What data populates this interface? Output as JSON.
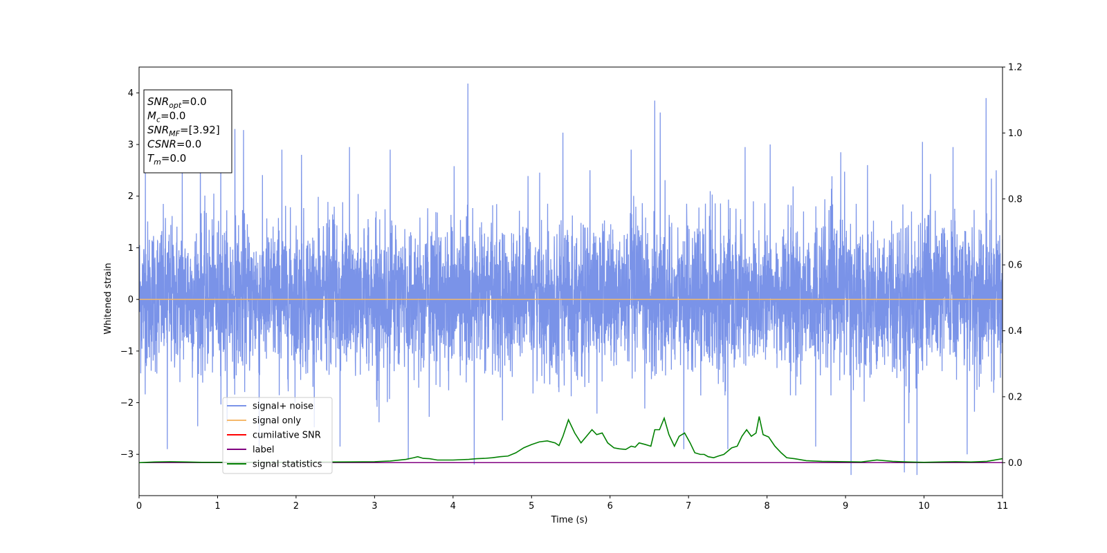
{
  "chart_data": {
    "type": "line",
    "xlabel": "Time (s)",
    "ylabel": "Whitened strain",
    "xlim": [
      0,
      11
    ],
    "ylim": [
      -3.8,
      4.5
    ],
    "y2lim": [
      -0.1,
      1.2
    ],
    "x_ticks": [
      0,
      1,
      2,
      3,
      4,
      5,
      6,
      7,
      8,
      9,
      10,
      11
    ],
    "y_ticks": [
      -3,
      -2,
      -1,
      0,
      1,
      2,
      3,
      4
    ],
    "y2_ticks": [
      0.0,
      0.2,
      0.4,
      0.6,
      0.8,
      1.0,
      1.2
    ],
    "grid": false,
    "legend_position": "lower-left",
    "info_box": {
      "lines": [
        {
          "main": "SNR",
          "sub": "opt",
          "value": "=0.0"
        },
        {
          "main": "M",
          "sub": "c",
          "value": "=0.0"
        },
        {
          "main": "SNR",
          "sub": "MF",
          "value": "=[3.92]"
        },
        {
          "main": "CSNR",
          "sub": "",
          "value": "=0.0"
        },
        {
          "main": "T",
          "sub": "m",
          "value": "=0.0"
        }
      ]
    },
    "series": [
      {
        "name": "signal+ noise",
        "color": "#7a93e8",
        "axis": "left",
        "kind": "noise",
        "typical_envelope": [
          -1.6,
          2.0
        ],
        "spikes": [
          {
            "x": 0.08,
            "y": 2.6
          },
          {
            "x": 0.36,
            "y": -2.9
          },
          {
            "x": 0.55,
            "y": 2.7
          },
          {
            "x": 0.78,
            "y": 3.3
          },
          {
            "x": 1.04,
            "y": 3.3
          },
          {
            "x": 1.22,
            "y": 3.3
          },
          {
            "x": 1.33,
            "y": 3.28
          },
          {
            "x": 1.53,
            "y": -2.85
          },
          {
            "x": 1.82,
            "y": 2.9
          },
          {
            "x": 2.07,
            "y": 2.8
          },
          {
            "x": 2.56,
            "y": -2.85
          },
          {
            "x": 2.68,
            "y": 2.95
          },
          {
            "x": 3.2,
            "y": 2.9
          },
          {
            "x": 3.43,
            "y": -3.1
          },
          {
            "x": 4.19,
            "y": 4.18
          },
          {
            "x": 4.27,
            "y": -3.2
          },
          {
            "x": 5.4,
            "y": 3.23
          },
          {
            "x": 6.27,
            "y": 2.9
          },
          {
            "x": 6.57,
            "y": 3.85
          },
          {
            "x": 6.64,
            "y": 3.62
          },
          {
            "x": 6.94,
            "y": -2.9
          },
          {
            "x": 7.5,
            "y": -2.9
          },
          {
            "x": 7.72,
            "y": 2.95
          },
          {
            "x": 8.04,
            "y": 3.0
          },
          {
            "x": 8.62,
            "y": -2.85
          },
          {
            "x": 8.94,
            "y": 2.85
          },
          {
            "x": 9.07,
            "y": -3.4
          },
          {
            "x": 9.28,
            "y": 2.6
          },
          {
            "x": 9.75,
            "y": -3.35
          },
          {
            "x": 9.91,
            "y": -3.4
          },
          {
            "x": 9.98,
            "y": 3.05
          },
          {
            "x": 10.37,
            "y": 2.95
          },
          {
            "x": 10.55,
            "y": -3.0
          },
          {
            "x": 10.79,
            "y": 3.9
          },
          {
            "x": 10.92,
            "y": 2.5
          }
        ]
      },
      {
        "name": "signal only",
        "color": "#f5b86a",
        "axis": "left",
        "x": [
          0,
          11
        ],
        "y": [
          0,
          0
        ]
      },
      {
        "name": "cumilative SNR",
        "color": "#ff0000",
        "axis": "right",
        "x": [
          0,
          11
        ],
        "y": [
          0,
          0
        ]
      },
      {
        "name": "label",
        "color": "#800080",
        "axis": "right",
        "x": [
          0,
          11
        ],
        "y": [
          0,
          0
        ]
      },
      {
        "name": "signal statistics",
        "color": "#008000",
        "axis": "right",
        "x": [
          0,
          0.2,
          0.4,
          0.6,
          0.8,
          1.0,
          1.5,
          2.0,
          2.5,
          3.0,
          3.2,
          3.4,
          3.5,
          3.55,
          3.62,
          3.7,
          3.8,
          4.0,
          4.2,
          4.3,
          4.4,
          4.5,
          4.6,
          4.7,
          4.8,
          4.9,
          5.0,
          5.1,
          5.2,
          5.3,
          5.35,
          5.4,
          5.47,
          5.55,
          5.63,
          5.7,
          5.77,
          5.83,
          5.9,
          5.97,
          6.05,
          6.12,
          6.2,
          6.27,
          6.32,
          6.37,
          6.45,
          6.52,
          6.57,
          6.63,
          6.69,
          6.75,
          6.82,
          6.88,
          6.95,
          7.02,
          7.08,
          7.15,
          7.2,
          7.25,
          7.32,
          7.38,
          7.45,
          7.5,
          7.55,
          7.62,
          7.68,
          7.74,
          7.8,
          7.86,
          7.9,
          7.95,
          8.02,
          8.1,
          8.18,
          8.25,
          8.35,
          8.5,
          8.7,
          9.0,
          9.2,
          9.4,
          9.6,
          9.8,
          10.0,
          10.2,
          10.4,
          10.6,
          10.8,
          11.0
        ],
        "y": [
          0.0,
          0.002,
          0.003,
          0.002,
          0.001,
          0.001,
          0.001,
          0.001,
          0.002,
          0.003,
          0.005,
          0.01,
          0.015,
          0.018,
          0.013,
          0.012,
          0.008,
          0.008,
          0.01,
          0.012,
          0.013,
          0.015,
          0.018,
          0.02,
          0.03,
          0.045,
          0.055,
          0.063,
          0.066,
          0.06,
          0.052,
          0.08,
          0.13,
          0.09,
          0.06,
          0.08,
          0.1,
          0.085,
          0.09,
          0.06,
          0.045,
          0.042,
          0.04,
          0.05,
          0.047,
          0.06,
          0.055,
          0.05,
          0.1,
          0.1,
          0.135,
          0.085,
          0.05,
          0.08,
          0.09,
          0.06,
          0.03,
          0.025,
          0.025,
          0.018,
          0.015,
          0.02,
          0.025,
          0.035,
          0.045,
          0.05,
          0.08,
          0.1,
          0.08,
          0.09,
          0.14,
          0.085,
          0.078,
          0.05,
          0.03,
          0.015,
          0.012,
          0.006,
          0.004,
          0.003,
          0.002,
          0.008,
          0.004,
          0.002,
          0.001,
          0.002,
          0.003,
          0.002,
          0.004,
          0.012
        ]
      }
    ]
  }
}
